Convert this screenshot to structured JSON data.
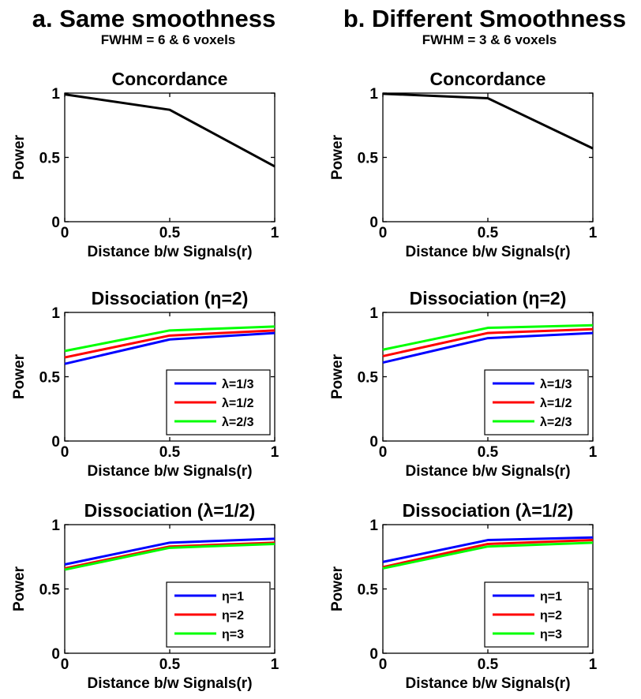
{
  "columns": [
    {
      "title": "a. Same smoothness",
      "subtitle": "FWHM = 6 & 6 voxels"
    },
    {
      "title": "b. Different Smoothness",
      "subtitle": "FWHM = 3 & 6 voxels"
    }
  ],
  "colors": {
    "black": "#000000",
    "blue": "#0000ff",
    "red": "#ff0000",
    "green": "#00ff00"
  },
  "chart_data": [
    {
      "type": "line",
      "column": 0,
      "row": 0,
      "title": "Concordance",
      "xlabel": "Distance b/w Signals(r)",
      "ylabel": "Power",
      "xlim": [
        0,
        1
      ],
      "ylim": [
        0,
        1
      ],
      "xticks": [
        0,
        0.5,
        1
      ],
      "xtick_labels": [
        "0",
        "0.5",
        "1"
      ],
      "yticks": [
        0,
        0.5,
        1
      ],
      "ytick_labels": [
        "0",
        "0.5",
        "1"
      ],
      "x": [
        0,
        0.5,
        1
      ],
      "series": [
        {
          "color": "#000000",
          "values": [
            0.99,
            0.87,
            0.43
          ]
        }
      ]
    },
    {
      "type": "line",
      "column": 1,
      "row": 0,
      "title": "Concordance",
      "xlabel": "Distance b/w Signals(r)",
      "ylabel": "Power",
      "xlim": [
        0,
        1
      ],
      "ylim": [
        0,
        1
      ],
      "xticks": [
        0,
        0.5,
        1
      ],
      "xtick_labels": [
        "0",
        "0.5",
        "1"
      ],
      "yticks": [
        0,
        0.5,
        1
      ],
      "ytick_labels": [
        "0",
        "0.5",
        "1"
      ],
      "x": [
        0,
        0.5,
        1
      ],
      "series": [
        {
          "color": "#000000",
          "values": [
            0.995,
            0.96,
            0.57
          ]
        }
      ]
    },
    {
      "type": "line",
      "column": 0,
      "row": 1,
      "title": "Dissociation (η=2)",
      "xlabel": "Distance b/w Signals(r)",
      "ylabel": "Power",
      "xlim": [
        0,
        1
      ],
      "ylim": [
        0,
        1
      ],
      "xticks": [
        0,
        0.5,
        1
      ],
      "xtick_labels": [
        "0",
        "0.5",
        "1"
      ],
      "yticks": [
        0,
        0.5,
        1
      ],
      "ytick_labels": [
        "0",
        "0.5",
        "1"
      ],
      "x": [
        0,
        0.5,
        1
      ],
      "legend_position": "bottom-right",
      "series": [
        {
          "name": "λ=1/3",
          "color": "#0000ff",
          "values": [
            0.6,
            0.79,
            0.84
          ]
        },
        {
          "name": "λ=1/2",
          "color": "#ff0000",
          "values": [
            0.65,
            0.82,
            0.86
          ]
        },
        {
          "name": "λ=2/3",
          "color": "#00ff00",
          "values": [
            0.7,
            0.86,
            0.89
          ]
        }
      ]
    },
    {
      "type": "line",
      "column": 1,
      "row": 1,
      "title": "Dissociation (η=2)",
      "xlabel": "Distance b/w Signals(r)",
      "ylabel": "Power",
      "xlim": [
        0,
        1
      ],
      "ylim": [
        0,
        1
      ],
      "xticks": [
        0,
        0.5,
        1
      ],
      "xtick_labels": [
        "0",
        "0.5",
        "1"
      ],
      "yticks": [
        0,
        0.5,
        1
      ],
      "ytick_labels": [
        "0",
        "0.5",
        "1"
      ],
      "x": [
        0,
        0.5,
        1
      ],
      "legend_position": "bottom-right",
      "series": [
        {
          "name": "λ=1/3",
          "color": "#0000ff",
          "values": [
            0.61,
            0.8,
            0.84
          ]
        },
        {
          "name": "λ=1/2",
          "color": "#ff0000",
          "values": [
            0.66,
            0.84,
            0.87
          ]
        },
        {
          "name": "λ=2/3",
          "color": "#00ff00",
          "values": [
            0.71,
            0.88,
            0.9
          ]
        }
      ]
    },
    {
      "type": "line",
      "column": 0,
      "row": 2,
      "title": "Dissociation (λ=1/2)",
      "xlabel": "Distance b/w Signals(r)",
      "ylabel": "Power",
      "xlim": [
        0,
        1
      ],
      "ylim": [
        0,
        1
      ],
      "xticks": [
        0,
        0.5,
        1
      ],
      "xtick_labels": [
        "0",
        "0.5",
        "1"
      ],
      "yticks": [
        0,
        0.5,
        1
      ],
      "ytick_labels": [
        "0",
        "0.5",
        "1"
      ],
      "x": [
        0,
        0.5,
        1
      ],
      "legend_position": "bottom-right",
      "series": [
        {
          "name": "η=1",
          "color": "#0000ff",
          "values": [
            0.69,
            0.86,
            0.89
          ]
        },
        {
          "name": "η=2",
          "color": "#ff0000",
          "values": [
            0.66,
            0.83,
            0.86
          ]
        },
        {
          "name": "η=3",
          "color": "#00ff00",
          "values": [
            0.65,
            0.82,
            0.85
          ]
        }
      ]
    },
    {
      "type": "line",
      "column": 1,
      "row": 2,
      "title": "Dissociation (λ=1/2)",
      "xlabel": "Distance b/w Signals(r)",
      "ylabel": "Power",
      "xlim": [
        0,
        1
      ],
      "ylim": [
        0,
        1
      ],
      "xticks": [
        0,
        0.5,
        1
      ],
      "xtick_labels": [
        "0",
        "0.5",
        "1"
      ],
      "yticks": [
        0,
        0.5,
        1
      ],
      "ytick_labels": [
        "0",
        "0.5",
        "1"
      ],
      "x": [
        0,
        0.5,
        1
      ],
      "legend_position": "bottom-right",
      "series": [
        {
          "name": "η=1",
          "color": "#0000ff",
          "values": [
            0.71,
            0.88,
            0.9
          ]
        },
        {
          "name": "η=2",
          "color": "#ff0000",
          "values": [
            0.67,
            0.85,
            0.88
          ]
        },
        {
          "name": "η=3",
          "color": "#00ff00",
          "values": [
            0.66,
            0.83,
            0.86
          ]
        }
      ]
    }
  ]
}
